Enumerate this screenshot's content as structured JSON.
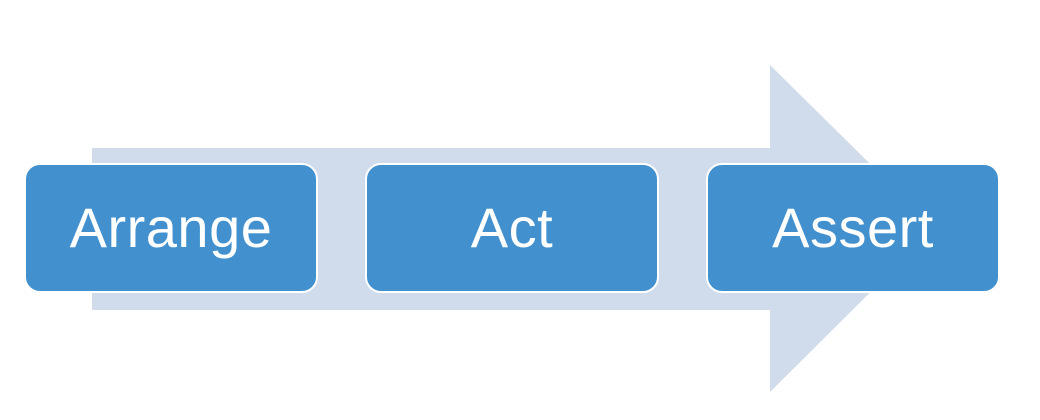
{
  "diagram": {
    "arrow_color": "#d0dcec",
    "box_color": "#4291ce",
    "text_color": "#ffffff",
    "steps": [
      {
        "label": "Arrange"
      },
      {
        "label": "Act"
      },
      {
        "label": "Assert"
      }
    ]
  }
}
